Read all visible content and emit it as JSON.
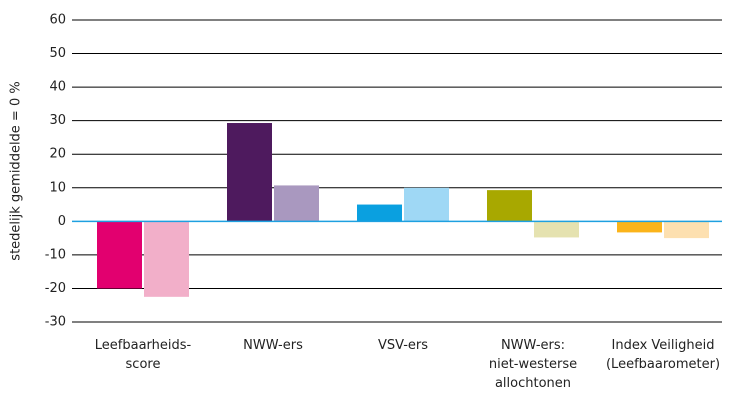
{
  "chart_data": {
    "type": "bar",
    "y_label": "stedelijk gemiddelde = 0 %",
    "categories": [
      "Leefbaarheids-\nscore",
      "NWW-ers",
      "VSV-ers",
      "NWW-ers:\nniet-westerse\nallochtonen",
      "Index Veiligheid\n(Leefbaarometer)"
    ],
    "series": [
      {
        "values": [
          -20,
          29.3,
          5,
          9.3,
          -3.3
        ],
        "colors": [
          "#e2006f",
          "#4e1a5e",
          "#0aa0e0",
          "#a8a800",
          "#fbb41a"
        ]
      },
      {
        "values": [
          -22.5,
          10.7,
          10,
          -4.8,
          -5
        ],
        "colors": [
          "#f2afc9",
          "#a998bf",
          "#9fd8f5",
          "#e5e2b0",
          "#fde0b0"
        ]
      }
    ],
    "ylim": [
      -30,
      60
    ],
    "yticks": [
      -30,
      -20,
      -10,
      0,
      10,
      20,
      30,
      40,
      50,
      60
    ],
    "grid": true,
    "zero_line_color": "#1ea0e0"
  }
}
